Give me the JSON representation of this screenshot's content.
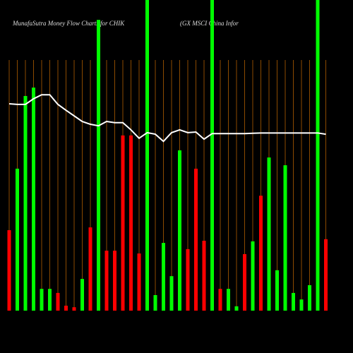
{
  "chart_data": {
    "type": "bar",
    "title": "MunafaSutra  Money Flow  Charts for CHIK",
    "subtitle": "(GX  MSCI China  Infor",
    "categories": [
      null,
      null,
      null,
      null,
      null,
      null,
      null,
      null,
      null,
      null,
      null,
      null,
      null,
      null,
      null,
      null,
      null,
      null,
      null,
      null,
      null,
      null,
      null,
      null,
      null,
      null,
      null,
      null,
      null,
      null,
      null,
      null,
      null,
      null,
      null,
      null,
      null,
      null,
      null,
      null
    ],
    "series": [
      {
        "values": [
          25.9,
          45.7,
          69.1,
          71.8,
          7,
          7,
          5.7,
          1.6,
          1.1,
          10.2,
          26.8,
          93.6,
          19.3,
          19.3,
          56.4,
          56.4,
          18.4,
          100,
          5,
          21.8,
          11.1,
          51.6,
          19.8,
          45.7,
          22.5,
          100,
          7,
          7,
          1.4,
          18.2,
          22.3,
          37,
          49.3,
          13,
          46.8,
          5.7,
          3.6,
          8.2,
          100,
          23
        ],
        "colors": [
          "#ff0000",
          "#00ff00",
          "#00ff00",
          "#00ff00",
          "#00ff00",
          "#00ff00",
          "#ff0000",
          "#ff0000",
          "#ff0000",
          "#00ff00",
          "#ff0000",
          "#00ff00",
          "#ff0000",
          "#ff0000",
          "#ff0000",
          "#ff0000",
          "#ff0000",
          "#00ff00",
          "#00ff00",
          "#00ff00",
          "#00ff00",
          "#00ff00",
          "#ff0000",
          "#ff0000",
          "#ff0000",
          "#00ff00",
          "#ff0000",
          "#00ff00",
          "#00ff00",
          "#ff0000",
          "#00ff00",
          "#ff0000",
          "#00ff00",
          "#00ff00",
          "#00ff00",
          "#00ff00",
          "#00ff00",
          "#00ff00",
          "#00ff00",
          "#ff0000"
        ]
      },
      {
        "type": "line",
        "color": "#ffffff",
        "values": [
          66.6,
          66.4,
          66.4,
          68.2,
          69.5,
          69.5,
          66.4,
          64.5,
          62.7,
          60.9,
          60,
          59.5,
          60.9,
          60.5,
          60.5,
          58.2,
          55.5,
          57.3,
          56.8,
          54.5,
          57.3,
          58.2,
          57.3,
          57.5,
          55.2,
          57,
          57,
          57,
          57,
          57,
          57.1,
          57.2,
          57.2,
          57.2,
          57.2,
          57.2,
          57.2,
          57.2,
          57.2,
          56.8
        ]
      }
    ],
    "ylim": [
      0,
      100
    ],
    "grid": true,
    "grid_color": "#8b4a00"
  }
}
